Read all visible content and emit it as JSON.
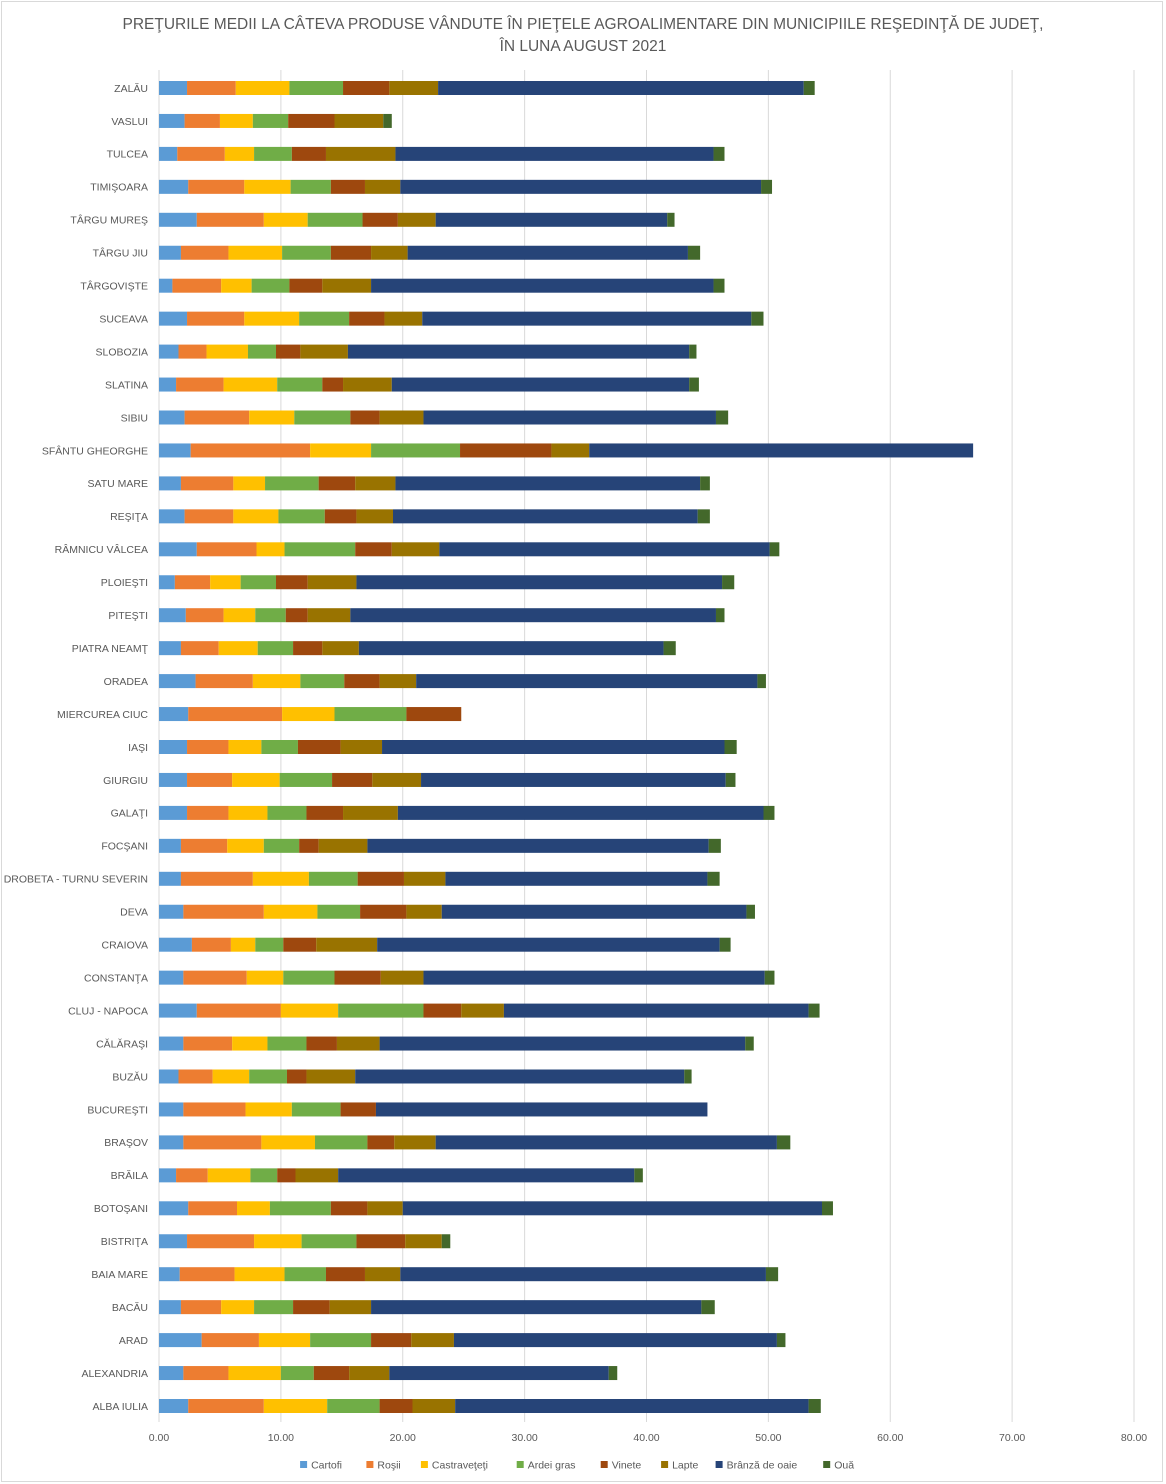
{
  "chart_data": {
    "type": "bar",
    "orientation": "horizontal",
    "stacked": true,
    "title_lines": [
      "PREŢURILE MEDII LA CÂTEVA PRODUSE VÂNDUTE ÎN PIEŢELE AGROALIMENTARE DIN MUNICIPIILE REŞEDINŢĂ DE JUDEŢ,",
      "ÎN LUNA AUGUST 2021"
    ],
    "xlabel": "",
    "ylabel": "",
    "xlim": [
      0,
      80
    ],
    "xticks": [
      "0.00",
      "10.00",
      "20.00",
      "30.00",
      "40.00",
      "50.00",
      "60.00",
      "70.00",
      "80.00"
    ],
    "grid": "vertical",
    "legend_position": "bottom",
    "categories": [
      "ZALĂU",
      "VASLUI",
      "TULCEA",
      "TIMIŞOARA",
      "TÂRGU MUREŞ",
      "TÂRGU JIU",
      "TÂRGOVIŞTE",
      "SUCEAVA",
      "SLOBOZIA",
      "SLATINA",
      "SIBIU",
      "SFÂNTU GHEORGHE",
      "SATU MARE",
      "REŞIŢA",
      "RÂMNICU VÂLCEA",
      "PLOIEŞTI",
      "PITEŞTI",
      "PIATRA NEAMŢ",
      "ORADEA",
      "MIERCUREA CIUC",
      "IAŞI",
      "GIURGIU",
      "GALAŢI",
      "FOCŞANI",
      "DROBETA - TURNU  SEVERIN",
      "DEVA",
      "CRAIOVA",
      "CONSTANŢA",
      "CLUJ - NAPOCA",
      "CĂLĂRAŞI",
      "BUZĂU",
      "BUCUREŞTI",
      "BRAŞOV",
      "BRĂILA",
      "BOTOŞANI",
      "BISTRIŢA",
      "BAIA MARE",
      "BACĂU",
      "ARAD",
      "ALEXANDRIA",
      "ALBA IULIA"
    ],
    "series": [
      {
        "name": "Cartofi",
        "color": "#5b9bd5",
        "values": [
          2.3,
          2.1,
          1.5,
          2.4,
          3.1,
          1.8,
          1.1,
          2.3,
          1.6,
          1.4,
          2.1,
          2.6,
          1.8,
          2.1,
          3.1,
          1.3,
          2.2,
          1.8,
          3.0,
          2.4,
          2.3,
          2.3,
          2.3,
          1.8,
          1.8,
          2.0,
          2.7,
          2.0,
          3.1,
          2.0,
          1.6,
          2.0,
          2.0,
          1.4,
          2.4,
          2.3,
          1.7,
          1.8,
          3.5,
          2.0,
          2.4
        ]
      },
      {
        "name": "Roşii",
        "color": "#ed7d31",
        "values": [
          4.0,
          2.9,
          3.9,
          4.6,
          5.5,
          3.9,
          4.0,
          4.7,
          2.3,
          3.9,
          5.3,
          9.8,
          4.3,
          4.0,
          4.9,
          2.9,
          3.1,
          3.1,
          4.7,
          7.7,
          3.4,
          3.7,
          3.4,
          3.8,
          5.9,
          6.6,
          3.2,
          5.2,
          6.9,
          4.0,
          2.8,
          5.1,
          6.4,
          2.6,
          4.0,
          5.5,
          4.5,
          3.3,
          4.7,
          3.7,
          6.2
        ]
      },
      {
        "name": "Castraveţeţi",
        "color": "#ffc000",
        "values": [
          4.4,
          2.7,
          2.4,
          3.8,
          3.6,
          4.4,
          2.5,
          4.5,
          3.4,
          4.4,
          3.7,
          5.0,
          2.6,
          3.7,
          2.3,
          2.5,
          2.6,
          3.2,
          3.9,
          4.3,
          2.7,
          3.9,
          3.2,
          3.0,
          4.6,
          4.4,
          2.0,
          3.0,
          4.7,
          2.9,
          3.0,
          3.8,
          4.4,
          3.5,
          2.7,
          3.9,
          4.1,
          2.7,
          4.2,
          4.3,
          5.2
        ]
      },
      {
        "name": "Ardei gras",
        "color": "#70ad47",
        "values": [
          4.4,
          2.9,
          3.1,
          3.3,
          4.5,
          4.0,
          3.1,
          4.1,
          2.3,
          3.7,
          4.6,
          7.3,
          4.4,
          3.8,
          5.8,
          2.9,
          2.5,
          2.9,
          3.6,
          5.9,
          3.0,
          4.3,
          3.2,
          2.9,
          4.0,
          3.5,
          2.3,
          4.2,
          7.0,
          3.2,
          3.1,
          4.0,
          4.3,
          2.2,
          5.0,
          4.5,
          3.4,
          3.2,
          5.0,
          2.7,
          4.3
        ]
      },
      {
        "name": "Vinete",
        "color": "#9e480e",
        "values": [
          3.8,
          3.8,
          2.8,
          2.8,
          2.9,
          3.3,
          2.7,
          2.9,
          2.0,
          1.7,
          2.4,
          7.5,
          3.0,
          2.6,
          3.0,
          2.6,
          1.8,
          2.4,
          2.9,
          4.5,
          3.5,
          3.3,
          3.0,
          1.6,
          3.8,
          3.8,
          2.7,
          3.8,
          3.1,
          2.5,
          1.6,
          2.9,
          2.2,
          1.5,
          3.0,
          4.0,
          3.2,
          3.0,
          3.3,
          2.9,
          2.7
        ]
      },
      {
        "name": "Lapte",
        "color": "#997300",
        "values": [
          4.0,
          4.0,
          5.7,
          2.9,
          3.1,
          3.0,
          4.0,
          3.1,
          3.9,
          4.0,
          3.6,
          3.1,
          3.3,
          3.0,
          3.9,
          4.0,
          3.5,
          3.0,
          3.0,
          0,
          3.4,
          4.0,
          4.5,
          4.0,
          3.4,
          2.9,
          5.0,
          3.5,
          3.5,
          3.5,
          4.0,
          0,
          3.4,
          3.5,
          2.9,
          3.0,
          2.9,
          3.4,
          3.5,
          3.3,
          3.5
        ]
      },
      {
        "name": "Brânză de oaie",
        "color": "#264478",
        "values": [
          30.0,
          0,
          26.1,
          29.6,
          19.0,
          23.0,
          28.1,
          27.0,
          28.0,
          24.4,
          24.0,
          31.5,
          25.0,
          25.0,
          27.1,
          30.0,
          30.0,
          25.0,
          28.0,
          0,
          28.1,
          25.0,
          30.0,
          28.0,
          21.5,
          25.0,
          28.1,
          28.0,
          25.0,
          30.0,
          27.0,
          27.2,
          28.0,
          24.3,
          34.4,
          0,
          30.0,
          27.1,
          26.5,
          18.0,
          29.0
        ]
      },
      {
        "name": "Ouă",
        "color": "#43682b",
        "values": [
          0.9,
          0.7,
          0.9,
          0.9,
          0.6,
          1.0,
          0.9,
          1.0,
          0.6,
          0.8,
          1.0,
          0,
          0.8,
          1.0,
          0.8,
          1.0,
          0.7,
          1.0,
          0.7,
          0,
          1.0,
          0.8,
          0.9,
          1.0,
          1.0,
          0.7,
          0.9,
          0.8,
          0.9,
          0.7,
          0.6,
          0,
          1.1,
          0.7,
          0.9,
          0.7,
          1.0,
          1.1,
          0.7,
          0.7,
          1.0
        ]
      }
    ]
  }
}
